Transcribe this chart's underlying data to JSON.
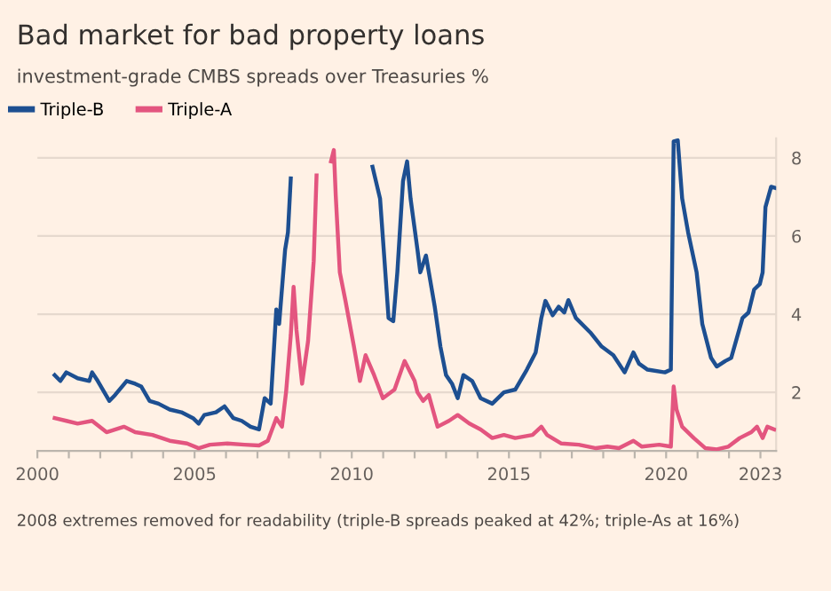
{
  "chart_data": {
    "type": "line",
    "title": "Bad market for bad property loans",
    "subtitle": "investment-grade CMBS spreads over Treasuries %",
    "series": [
      {
        "name": "Triple-B",
        "color": "#1d4f91",
        "x": [
          2000.55,
          2000.73,
          2000.92,
          2001.28,
          2001.65,
          2001.74,
          2001.92,
          2002.29,
          2002.47,
          2002.84,
          2003.11,
          2003.3,
          2003.57,
          2003.85,
          2004.21,
          2004.58,
          2004.95,
          2005.13,
          2005.31,
          2005.68,
          2005.95,
          2006.23,
          2006.5,
          2006.78,
          2007.05,
          2007.23,
          2007.42,
          2007.6,
          2007.69,
          2007.88,
          2007.97,
          2008.06,
          2008.5,
          2010.66,
          2010.9,
          2011.03,
          2011.17,
          2011.32,
          2011.45,
          2011.63,
          2011.76,
          2011.87,
          2012.09,
          2012.18,
          2012.36,
          2012.64,
          2012.82,
          2013.0,
          2013.19,
          2013.37,
          2013.55,
          2013.83,
          2014.1,
          2014.47,
          2014.84,
          2015.2,
          2015.57,
          2015.85,
          2016.03,
          2016.16,
          2016.39,
          2016.58,
          2016.76,
          2016.89,
          2017.13,
          2017.59,
          2017.95,
          2018.32,
          2018.68,
          2018.96,
          2019.14,
          2019.41,
          2019.96,
          2020.15,
          2020.24,
          2020.37,
          2020.51,
          2020.7,
          2020.97,
          2021.15,
          2021.43,
          2021.61,
          2021.88,
          2022.07,
          2022.25,
          2022.43,
          2022.62,
          2022.8,
          2022.98,
          2023.07,
          2023.16,
          2023.34,
          2023.47
        ],
        "values": [
          2.44,
          2.29,
          2.51,
          2.36,
          2.29,
          2.51,
          2.29,
          1.78,
          1.93,
          2.29,
          2.22,
          2.15,
          1.78,
          1.71,
          1.56,
          1.49,
          1.34,
          1.2,
          1.42,
          1.49,
          1.64,
          1.34,
          1.27,
          1.12,
          1.05,
          1.85,
          1.71,
          4.12,
          3.75,
          5.65,
          6.09,
          7.47,
          null,
          7.77,
          6.96,
          5.5,
          3.9,
          3.82,
          5.07,
          7.4,
          7.91,
          6.96,
          5.65,
          5.07,
          5.5,
          4.19,
          3.17,
          2.44,
          2.22,
          1.85,
          2.44,
          2.29,
          1.85,
          1.71,
          2.0,
          2.07,
          2.58,
          3.02,
          3.9,
          4.34,
          3.97,
          4.19,
          4.04,
          4.36,
          3.9,
          3.53,
          3.17,
          2.95,
          2.51,
          3.02,
          2.73,
          2.58,
          2.51,
          2.58,
          8.42,
          8.45,
          6.96,
          6.09,
          5.07,
          3.75,
          2.88,
          2.66,
          2.8,
          2.88,
          3.39,
          3.9,
          4.04,
          4.63,
          4.77,
          5.07,
          6.74,
          7.26,
          7.23
        ]
      },
      {
        "name": "Triple-A",
        "color": "#e3557f",
        "x": [
          2000.55,
          2000.92,
          2001.28,
          2001.74,
          2002.2,
          2002.75,
          2003.11,
          2003.66,
          2004.21,
          2004.76,
          2005.13,
          2005.49,
          2006.04,
          2006.59,
          2007.05,
          2007.33,
          2007.6,
          2007.78,
          2007.91,
          2008.06,
          2008.15,
          2008.24,
          2008.42,
          2008.61,
          2008.79,
          2008.88,
          2009.0,
          2009.34,
          2009.43,
          2009.49,
          2009.62,
          2009.8,
          2010.07,
          2010.26,
          2010.44,
          2010.71,
          2010.99,
          2011.36,
          2011.68,
          2012.0,
          2012.09,
          2012.27,
          2012.45,
          2012.73,
          2013.09,
          2013.37,
          2013.74,
          2014.1,
          2014.47,
          2014.84,
          2015.2,
          2015.75,
          2016.03,
          2016.21,
          2016.67,
          2017.22,
          2017.77,
          2018.13,
          2018.5,
          2018.96,
          2019.23,
          2019.78,
          2020.15,
          2020.24,
          2020.33,
          2020.51,
          2020.88,
          2021.25,
          2021.61,
          2021.98,
          2022.34,
          2022.71,
          2022.89,
          2023.07,
          2023.22,
          2023.44
        ],
        "values": [
          1.34,
          1.27,
          1.2,
          1.27,
          0.98,
          1.12,
          0.98,
          0.91,
          0.76,
          0.69,
          0.57,
          0.66,
          0.69,
          0.66,
          0.64,
          0.76,
          1.34,
          1.12,
          2.0,
          3.46,
          4.7,
          3.61,
          2.22,
          3.31,
          5.36,
          7.55,
          null,
          7.91,
          8.2,
          7.04,
          5.07,
          4.34,
          3.17,
          2.29,
          2.95,
          2.44,
          1.85,
          2.07,
          2.8,
          2.29,
          2.0,
          1.78,
          1.93,
          1.12,
          1.27,
          1.42,
          1.2,
          1.05,
          0.83,
          0.91,
          0.83,
          0.91,
          1.12,
          0.91,
          0.69,
          0.66,
          0.57,
          0.61,
          0.57,
          0.76,
          0.61,
          0.66,
          0.61,
          2.15,
          1.56,
          1.12,
          0.83,
          0.57,
          0.54,
          0.61,
          0.83,
          0.98,
          1.12,
          0.83,
          1.12,
          1.05
        ]
      }
    ],
    "xlim": [
      2000,
      2023.5
    ],
    "xticks": [
      2000,
      {
        "value": 2001,
        "label": null
      },
      {
        "value": 2002,
        "label": null
      },
      {
        "value": 2003,
        "label": null
      },
      {
        "value": 2004,
        "label": null
      },
      2005,
      {
        "value": 2006,
        "label": null
      },
      {
        "value": 2007,
        "label": null
      },
      {
        "value": 2008,
        "label": null
      },
      {
        "value": 2009,
        "label": null
      },
      2010,
      {
        "value": 2011,
        "label": null
      },
      {
        "value": 2012,
        "label": null
      },
      {
        "value": 2013,
        "label": null
      },
      {
        "value": 2014,
        "label": null
      },
      2015,
      {
        "value": 2016,
        "label": null
      },
      {
        "value": 2017,
        "label": null
      },
      {
        "value": 2018,
        "label": null
      },
      {
        "value": 2019,
        "label": null
      },
      2020,
      {
        "value": 2021,
        "label": null
      },
      {
        "value": 2022,
        "label": null
      },
      2023
    ],
    "ylim": [
      0.5,
      8.5
    ],
    "yticks": [
      2,
      4,
      6,
      8
    ],
    "grid": "y",
    "legend": "top left",
    "line_style": "solid",
    "annotations": [
      "2008 extremes removed for readability (triple-B spreads peaked at 42%; triple-As at 16%)"
    ]
  }
}
